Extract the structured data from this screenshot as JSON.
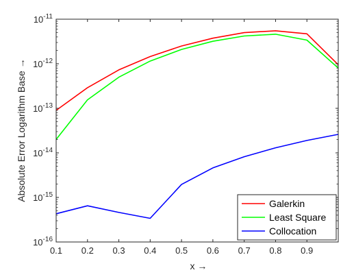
{
  "chart_data": {
    "type": "line",
    "xlabel": "x →",
    "ylabel": "Absolute Error Logarithm Base →",
    "xlim": [
      0.1,
      1.0
    ],
    "ylim": [
      1e-16,
      1e-11
    ],
    "yscale": "log",
    "grid": false,
    "legend_position": "bottom-right",
    "x_ticks": [
      "0.1",
      "0.2",
      "0.3",
      "0.4",
      "0.5",
      "0.6",
      "0.7",
      "0.8",
      "0.9"
    ],
    "y_ticks": [
      {
        "base": "10",
        "exp": "-16"
      },
      {
        "base": "10",
        "exp": "-15"
      },
      {
        "base": "10",
        "exp": "-14"
      },
      {
        "base": "10",
        "exp": "-13"
      },
      {
        "base": "10",
        "exp": "-12"
      },
      {
        "base": "10",
        "exp": "-11"
      }
    ],
    "x": [
      0.1,
      0.2,
      0.3,
      0.4,
      0.5,
      0.6,
      0.7,
      0.8,
      0.9,
      1.0
    ],
    "series": [
      {
        "name": "Galerkin",
        "color": "#ff0000",
        "values": [
          9e-14,
          2.9e-13,
          7.3e-13,
          1.45e-12,
          2.5e-12,
          3.75e-12,
          5e-12,
          5.5e-12,
          4.7e-12,
          9.5e-13
        ]
      },
      {
        "name": "Least Square",
        "color": "#00ff00",
        "values": [
          2e-14,
          1.55e-13,
          5e-13,
          1.15e-12,
          2.1e-12,
          3.2e-12,
          4.2e-12,
          4.6e-12,
          3.4e-12,
          8e-13
        ]
      },
      {
        "name": "Collocation",
        "color": "#0000ff",
        "values": [
          4.3e-16,
          6.5e-16,
          4.6e-16,
          3.4e-16,
          1.95e-15,
          4.6e-15,
          8.2e-15,
          1.3e-14,
          1.9e-14,
          2.6e-14
        ]
      }
    ]
  }
}
